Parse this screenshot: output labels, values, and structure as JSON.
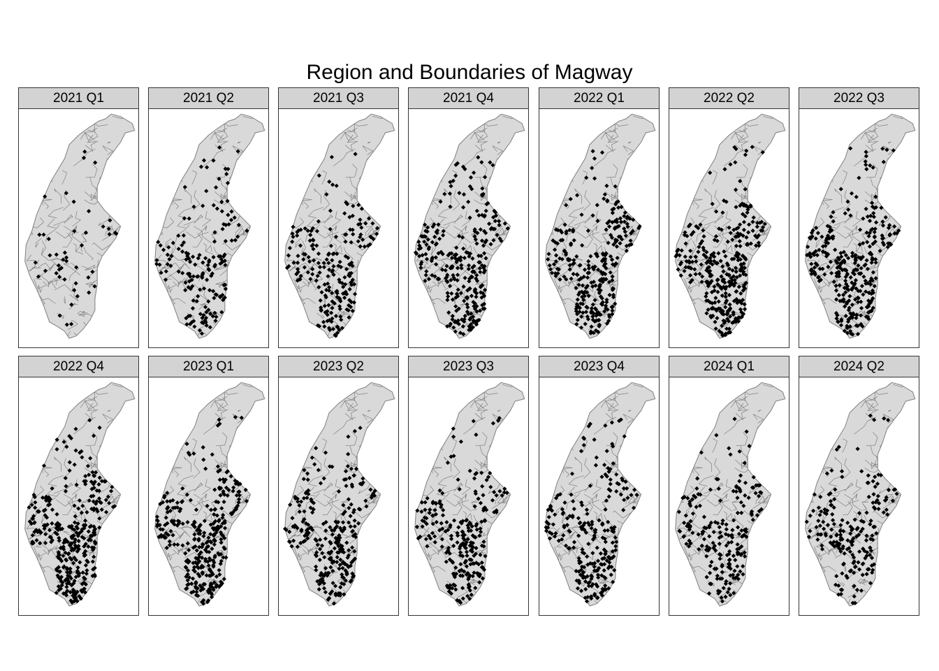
{
  "title": "Region and Boundaries of Magway",
  "map": {
    "region": "Magway",
    "fill_color": "#d9d9d9",
    "boundary_color": "#7f7f7f",
    "point_color": "#000000",
    "strip_color": "#d3d3d3"
  },
  "panels": [
    {
      "label": "2021 Q1",
      "intensity": 0.08
    },
    {
      "label": "2021 Q2",
      "intensity": 0.45
    },
    {
      "label": "2021 Q3",
      "intensity": 0.6
    },
    {
      "label": "2021 Q4",
      "intensity": 0.85
    },
    {
      "label": "2022 Q1",
      "intensity": 0.85
    },
    {
      "label": "2022 Q2",
      "intensity": 1.0
    },
    {
      "label": "2022 Q3",
      "intensity": 0.95
    },
    {
      "label": "2022 Q4",
      "intensity": 1.0
    },
    {
      "label": "2023 Q1",
      "intensity": 0.95
    },
    {
      "label": "2023 Q2",
      "intensity": 0.75
    },
    {
      "label": "2023 Q3",
      "intensity": 0.7
    },
    {
      "label": "2023 Q4",
      "intensity": 0.7
    },
    {
      "label": "2024 Q1",
      "intensity": 0.6
    },
    {
      "label": "2024 Q2",
      "intensity": 0.55
    }
  ]
}
